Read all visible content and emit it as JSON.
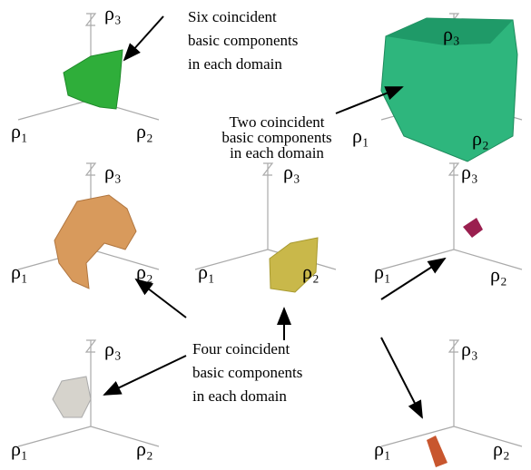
{
  "panels": [
    {
      "rho1": "ρ₁",
      "rho2": "ρ₂",
      "rho3": "ρ₃"
    },
    {
      "rho1": "ρ₁",
      "rho2": "ρ₂",
      "rho3": "ρ₃"
    },
    {
      "rho1": "ρ₁",
      "rho2": "ρ₂",
      "rho3": "ρ₃"
    },
    {
      "rho1": "ρ₁",
      "rho2": "ρ₂",
      "rho3": "ρ₃"
    },
    {
      "rho1": "ρ₁",
      "rho2": "ρ₂",
      "rho3": "ρ₃"
    },
    {
      "rho1": "ρ₁",
      "rho2": "ρ₂",
      "rho3": "ρ₃"
    },
    {
      "rho1": "ρ₁",
      "rho2": "ρ₂",
      "rho3": "ρ₃"
    }
  ],
  "annotations": [
    {
      "lines": [
        "Six coincident",
        "basic components",
        "in each domain"
      ]
    },
    {
      "lines": [
        "Two coincident",
        "basic components",
        "in each domain"
      ]
    },
    {
      "lines": [
        "Four coincident",
        "basic components",
        "in each domain"
      ]
    }
  ]
}
